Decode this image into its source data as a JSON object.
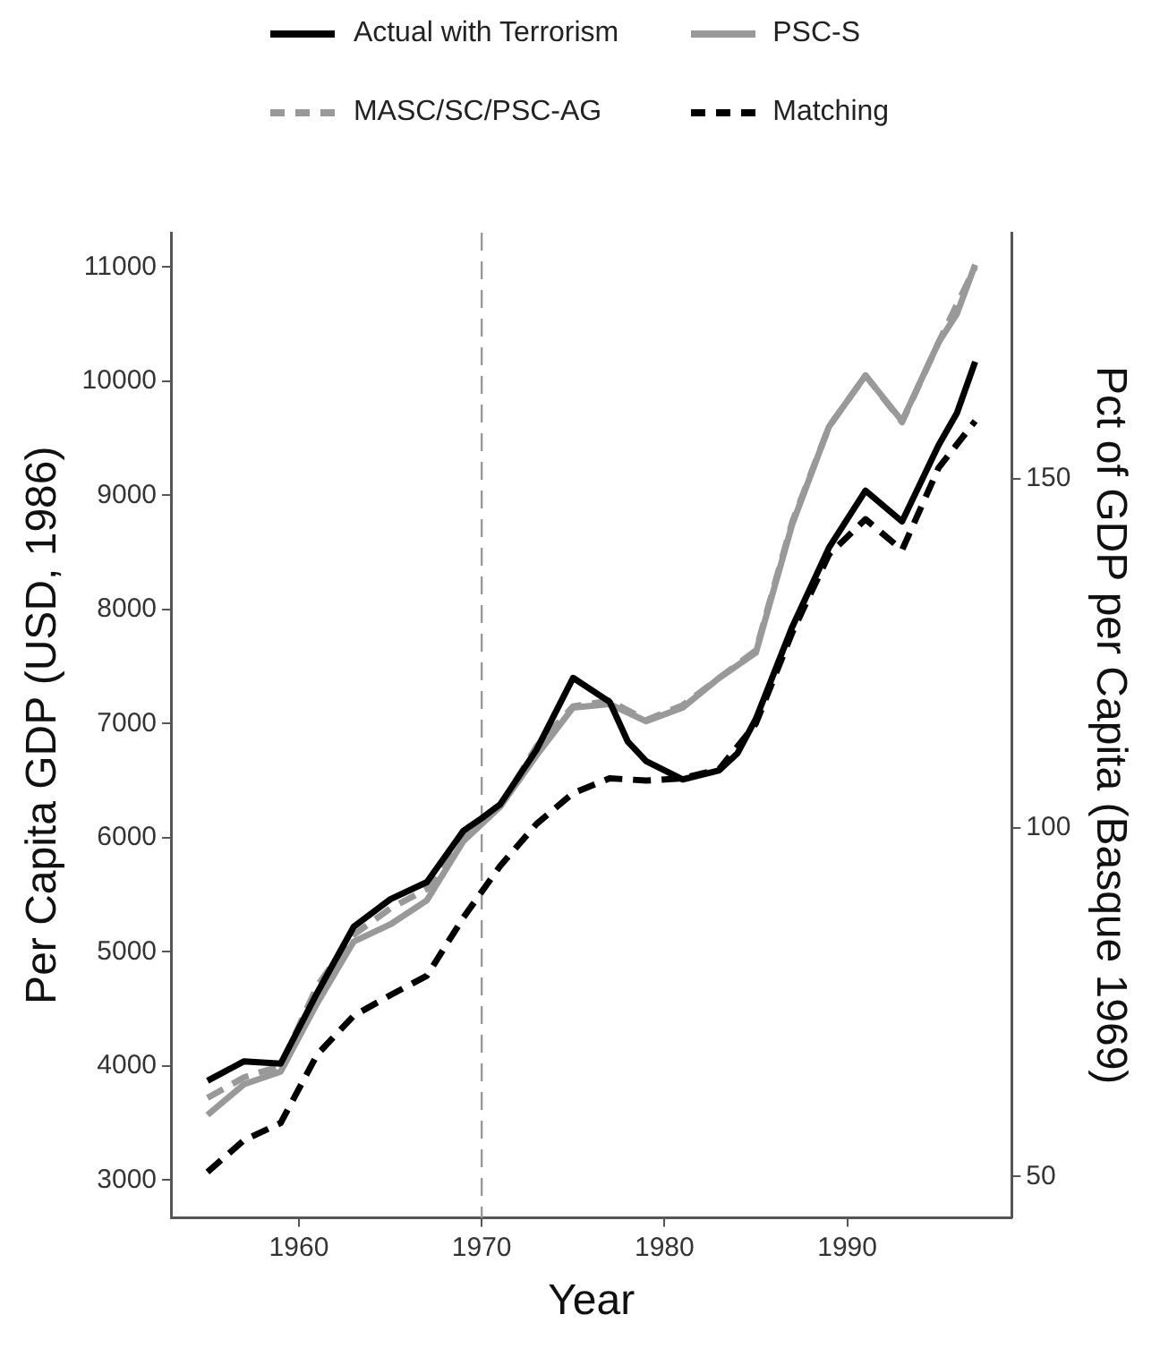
{
  "chart_data": {
    "type": "line",
    "xlabel": "Year",
    "ylabel": "Per Capita GDP (USD, 1986)",
    "y2label": "Pct of GDP per Capita (Basque 1969)",
    "xlim": [
      1953,
      1999
    ],
    "xticks": [
      1960,
      1970,
      1980,
      1990
    ],
    "ylim": [
      2670,
      11300
    ],
    "yticks": [
      3000,
      4000,
      5000,
      6000,
      7000,
      8000,
      9000,
      10000,
      11000
    ],
    "y2lim": [
      44.1,
      185.3
    ],
    "y2ticks": [
      50,
      100,
      150
    ],
    "grid": false,
    "legend": "top",
    "marker": "none",
    "ref_lines": [
      {
        "axis": "x",
        "value": 1970,
        "color": "#999999",
        "line_style": "dashed"
      }
    ],
    "series": [
      {
        "name": "Actual with Terrorism",
        "color": "#000000",
        "line_style": "solid",
        "x": [
          1955,
          1957,
          1959,
          1961,
          1963,
          1965,
          1967,
          1969,
          1970,
          1971,
          1973,
          1975,
          1977,
          1978,
          1979,
          1981,
          1983,
          1984,
          1985,
          1987,
          1989,
          1991,
          1993,
          1995,
          1996,
          1997
        ],
        "values": [
          3870,
          4040,
          4020,
          4640,
          5220,
          5460,
          5610,
          6060,
          6170,
          6290,
          6770,
          7400,
          7190,
          6840,
          6670,
          6510,
          6590,
          6740,
          7040,
          7850,
          8540,
          9040,
          8770,
          9440,
          9720,
          10170
        ]
      },
      {
        "name": "PSC-S",
        "color": "#999999",
        "line_style": "solid",
        "x": [
          1955,
          1957,
          1959,
          1961,
          1963,
          1965,
          1967,
          1969,
          1971,
          1973,
          1975,
          1977,
          1979,
          1981,
          1983,
          1985,
          1987,
          1989,
          1991,
          1993,
          1995,
          1996,
          1997
        ],
        "values": [
          3570,
          3840,
          3950,
          4550,
          5090,
          5240,
          5450,
          5970,
          6270,
          6720,
          7140,
          7170,
          7020,
          7140,
          7400,
          7620,
          8750,
          9600,
          10050,
          9650,
          10340,
          10590,
          11020
        ]
      },
      {
        "name": "MASC/SC/PSC-AG",
        "color": "#999999",
        "line_style": "dashed",
        "x": [
          1955,
          1957,
          1959,
          1961,
          1963,
          1965,
          1967,
          1969,
          1971,
          1973,
          1975,
          1977,
          1979,
          1981,
          1983,
          1985,
          1987,
          1989,
          1991,
          1993,
          1995,
          1997
        ],
        "values": [
          3720,
          3900,
          4000,
          4700,
          5150,
          5380,
          5550,
          6020,
          6270,
          6800,
          7150,
          7200,
          7030,
          7160,
          7400,
          7640,
          8770,
          9600,
          10050,
          9640,
          10340,
          11000
        ]
      },
      {
        "name": "Matching",
        "color": "#000000",
        "line_style": "dashed",
        "x": [
          1955,
          1957,
          1959,
          1961,
          1963,
          1965,
          1967,
          1969,
          1971,
          1973,
          1975,
          1977,
          1979,
          1981,
          1983,
          1985,
          1987,
          1989,
          1991,
          1993,
          1995,
          1997
        ],
        "values": [
          3070,
          3350,
          3500,
          4100,
          4440,
          4620,
          4790,
          5300,
          5750,
          6120,
          6390,
          6520,
          6500,
          6520,
          6600,
          7000,
          7800,
          8480,
          8790,
          8520,
          9240,
          9650
        ]
      }
    ]
  }
}
